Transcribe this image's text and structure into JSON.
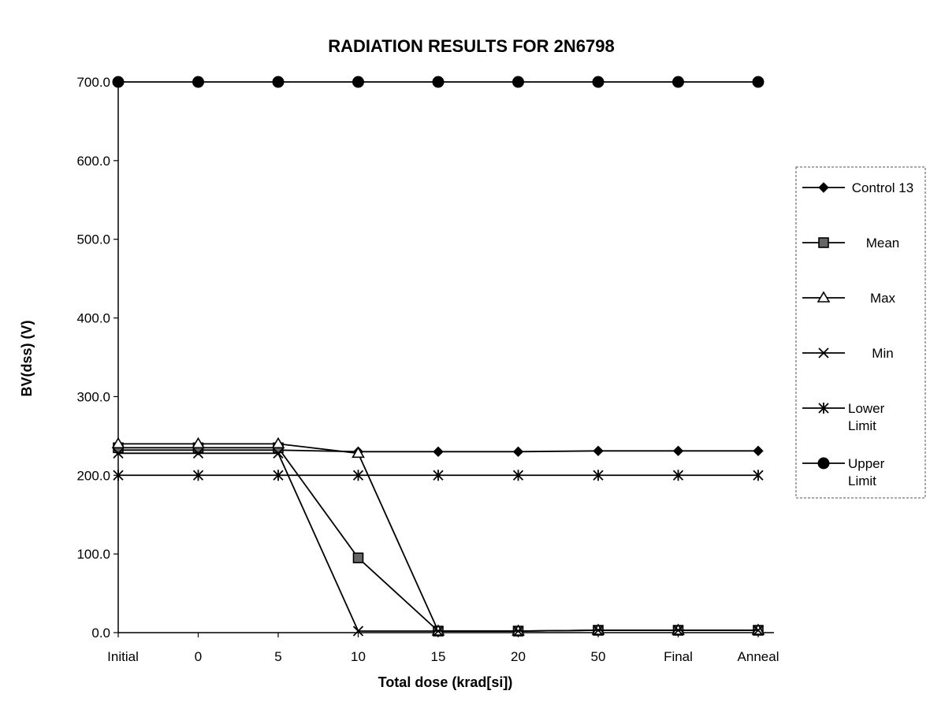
{
  "chart_data": {
    "type": "line",
    "title": "RADIATION RESULTS FOR 2N6798",
    "xlabel": "Total dose (krad[si])",
    "ylabel": "BV(dss) (V)",
    "categories": [
      "Initial",
      "0",
      "5",
      "10",
      "15",
      "20",
      "50",
      "Final",
      "Anneal"
    ],
    "ylim": [
      0,
      700
    ],
    "yticks": [
      "0.0",
      "100.0",
      "200.0",
      "300.0",
      "400.0",
      "500.0",
      "600.0",
      "700.0"
    ],
    "grid": false,
    "legend_position": "right",
    "series": [
      {
        "name": "Control 13",
        "marker": "diamond",
        "values": [
          232,
          232,
          232,
          230,
          230,
          230,
          231,
          231,
          231
        ]
      },
      {
        "name": "Mean",
        "marker": "square",
        "values": [
          235,
          235,
          235,
          95,
          2,
          2,
          3,
          3,
          3
        ]
      },
      {
        "name": "Max",
        "marker": "triangle",
        "values": [
          240,
          240,
          240,
          228,
          2,
          2,
          3,
          3,
          3
        ]
      },
      {
        "name": "Min",
        "marker": "x",
        "values": [
          228,
          228,
          228,
          2,
          2,
          2,
          3,
          3,
          3
        ]
      },
      {
        "name": "Lower\nLimit",
        "marker": "asterisk",
        "values": [
          200,
          200,
          200,
          200,
          200,
          200,
          200,
          200,
          200
        ]
      },
      {
        "name": "Upper\nLimit",
        "marker": "circle",
        "values": [
          700,
          700,
          700,
          700,
          700,
          700,
          700,
          700,
          700
        ]
      }
    ]
  }
}
